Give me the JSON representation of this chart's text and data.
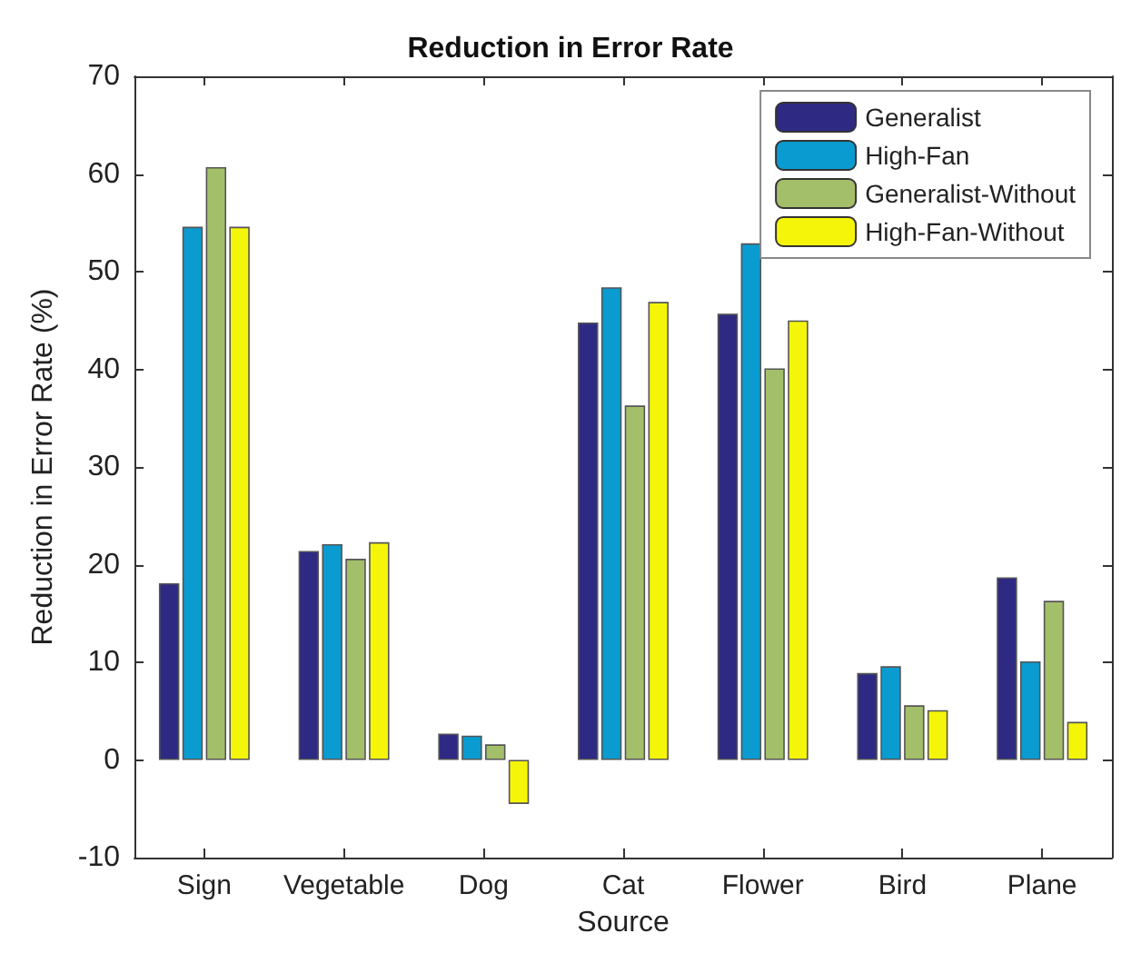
{
  "chart_data": {
    "type": "bar",
    "title": "Reduction in Error Rate",
    "xlabel": "Source",
    "ylabel": "Reduction in Error Rate (%)",
    "categories": [
      "Sign",
      "Vegetable",
      "Dog",
      "Cat",
      "Flower",
      "Bird",
      "Plane"
    ],
    "series": [
      {
        "name": "Generalist",
        "color": "#2e2a84",
        "values": [
          18.1,
          21.4,
          2.7,
          44.8,
          45.7,
          8.9,
          18.7
        ]
      },
      {
        "name": "High-Fan",
        "color": "#0a9bd0",
        "values": [
          54.6,
          22.1,
          2.5,
          48.4,
          52.9,
          9.6,
          10.1
        ]
      },
      {
        "name": "Generalist-Without",
        "color": "#a3bf6a",
        "values": [
          60.7,
          20.6,
          1.6,
          36.3,
          40.1,
          5.6,
          16.3
        ]
      },
      {
        "name": "High-Fan-Without",
        "color": "#f5f50a",
        "values": [
          54.6,
          22.3,
          -4.5,
          46.9,
          45.0,
          5.1,
          3.9
        ]
      }
    ],
    "ylim": [
      -10,
      70
    ],
    "yticks": [
      -10,
      0,
      10,
      20,
      30,
      40,
      50,
      60,
      70
    ],
    "grid": false,
    "legend": "top right"
  }
}
